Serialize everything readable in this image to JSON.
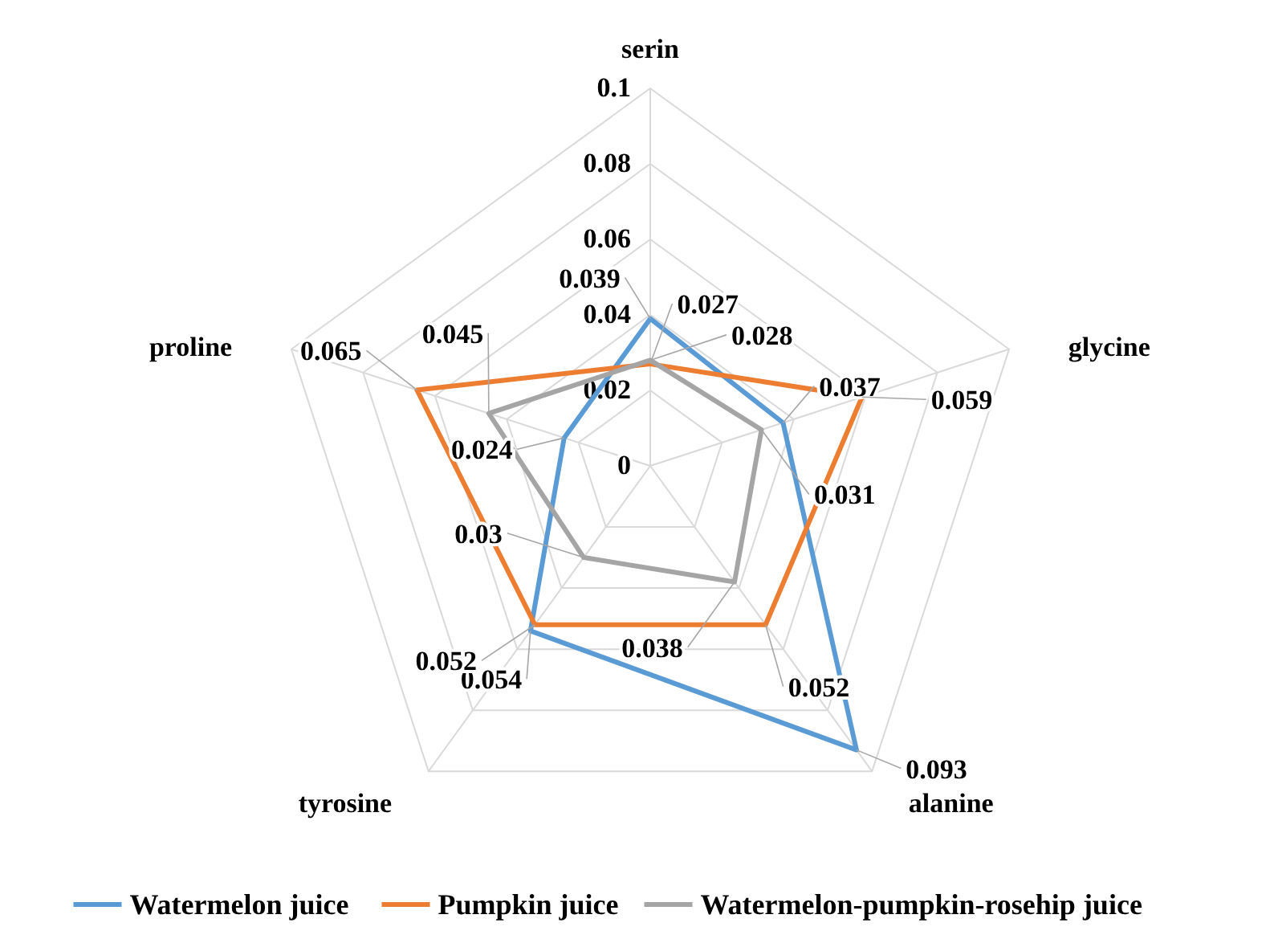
{
  "chart_data": {
    "type": "radar",
    "categories": [
      "serin",
      "glycine",
      "alanine",
      "tyrosine",
      "proline"
    ],
    "ylim": [
      0,
      0.1
    ],
    "yticks": [
      0,
      0.02,
      0.04,
      0.06,
      0.08,
      0.1
    ],
    "grid": true,
    "legend": "bottom",
    "data_labels": true,
    "marker": "none",
    "series": [
      {
        "name": "Watermelon juice",
        "color": "#5b9bd5",
        "values": [
          0.039,
          0.037,
          0.093,
          0.054,
          0.024
        ]
      },
      {
        "name": "Pumpkin juice",
        "color": "#ed7d31",
        "values": [
          0.027,
          0.059,
          0.052,
          0.052,
          0.065
        ]
      },
      {
        "name": "Watermelon-pumpkin-rosehip juice",
        "color": "#a5a5a5",
        "values": [
          0.028,
          0.031,
          0.038,
          0.03,
          0.045
        ]
      }
    ]
  }
}
